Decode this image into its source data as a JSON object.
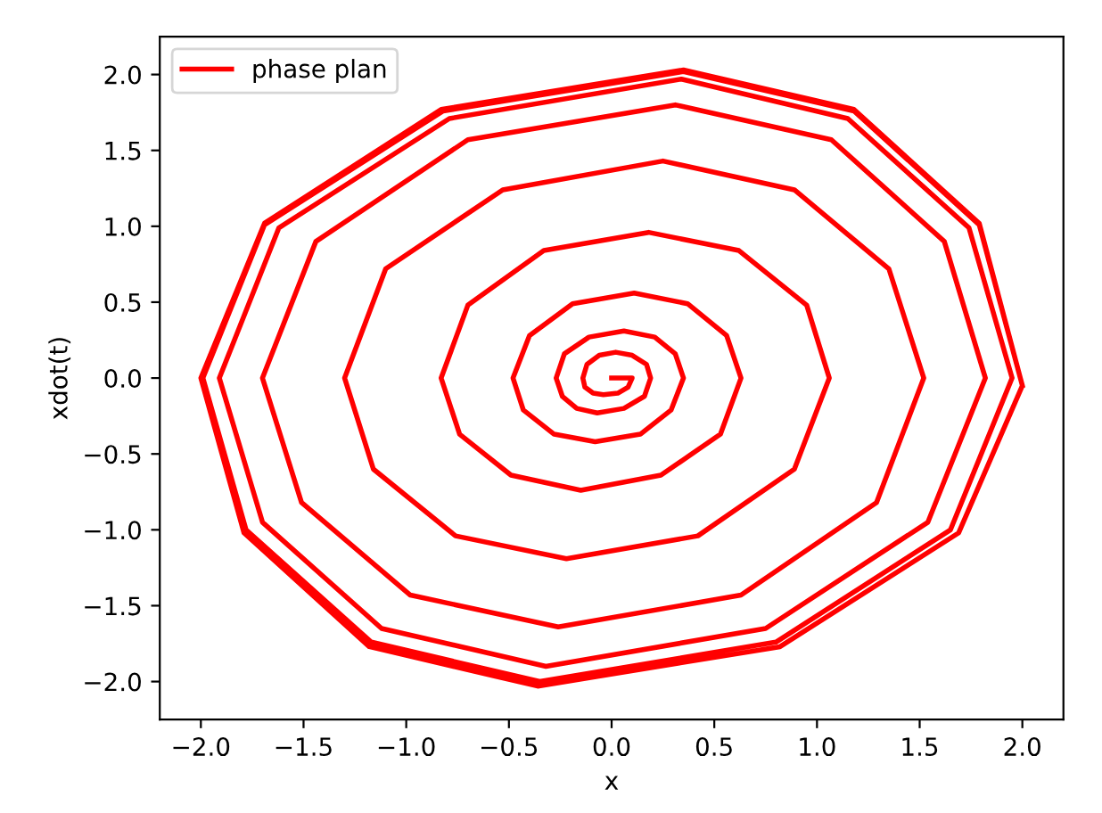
{
  "chart_data": {
    "type": "line",
    "xlabel": "x",
    "ylabel": "xdot(t)",
    "legend": "top left",
    "grid": false,
    "marker": "none",
    "line_style": "solid",
    "xlim": [
      -2.2,
      2.2
    ],
    "ylim": [
      -2.25,
      2.25
    ],
    "xticks": [
      {
        "value": -2.0,
        "label": "−2.0"
      },
      {
        "value": -1.5,
        "label": "−1.5"
      },
      {
        "value": -1.0,
        "label": "−1.0"
      },
      {
        "value": -0.5,
        "label": "−0.5"
      },
      {
        "value": 0.0,
        "label": "0.0"
      },
      {
        "value": 0.5,
        "label": "0.5"
      },
      {
        "value": 1.0,
        "label": "1.0"
      },
      {
        "value": 1.5,
        "label": "1.5"
      },
      {
        "value": 2.0,
        "label": "2.0"
      }
    ],
    "yticks": [
      {
        "value": -2.0,
        "label": "−2.0"
      },
      {
        "value": -1.5,
        "label": "−1.5"
      },
      {
        "value": -1.0,
        "label": "−1.0"
      },
      {
        "value": -0.5,
        "label": "−0.5"
      },
      {
        "value": 0.0,
        "label": "0.0"
      },
      {
        "value": 0.5,
        "label": "0.5"
      },
      {
        "value": 1.0,
        "label": "1.0"
      },
      {
        "value": 1.5,
        "label": "1.5"
      },
      {
        "value": 2.0,
        "label": "2.0"
      }
    ],
    "series": [
      {
        "name": "phase plan",
        "color": "#ff0000",
        "x": [
          0,
          0.1,
          0.08,
          0.03,
          -0.04,
          -0.09,
          -0.13,
          -0.14,
          -0.12,
          -0.06,
          0.02,
          0.1,
          0.17,
          0.19,
          0.16,
          0.06,
          -0.07,
          -0.17,
          -0.24,
          -0.27,
          -0.23,
          -0.11,
          0.06,
          0.21,
          0.31,
          0.35,
          0.29,
          0.14,
          -0.08,
          -0.28,
          -0.43,
          -0.48,
          -0.4,
          -0.19,
          0.11,
          0.37,
          0.56,
          0.63,
          0.53,
          0.24,
          -0.15,
          -0.49,
          -0.74,
          -0.83,
          -0.7,
          -0.33,
          0.18,
          0.62,
          0.95,
          1.06,
          0.89,
          0.42,
          -0.22,
          -0.76,
          -1.16,
          -1.3,
          -1.1,
          -0.53,
          0.25,
          0.89,
          1.35,
          1.52,
          1.29,
          0.63,
          -0.26,
          -0.98,
          -1.51,
          -1.7,
          -1.44,
          -0.7,
          0.31,
          1.07,
          1.62,
          1.82,
          1.54,
          0.75,
          -0.32,
          -1.12,
          -1.7,
          -1.91,
          -1.62,
          -0.79,
          0.34,
          1.15,
          1.74,
          1.95,
          1.65,
          0.8,
          -0.35,
          -1.17,
          -1.78,
          -1.99,
          -1.69,
          -0.82,
          0.35,
          1.18,
          1.79,
          2.0,
          1.69,
          0.82,
          -0.36,
          -1.18,
          -1.79,
          -2.0,
          -1.69,
          -0.83,
          0.35,
          1.18,
          1.79,
          2.0
        ],
        "values": [
          0,
          0,
          -0.06,
          -0.1,
          -0.11,
          -0.1,
          -0.06,
          0,
          0.09,
          0.15,
          0.17,
          0.15,
          0.09,
          0,
          -0.12,
          -0.2,
          -0.23,
          -0.2,
          -0.12,
          0,
          0.16,
          0.27,
          0.31,
          0.27,
          0.16,
          0,
          -0.21,
          -0.37,
          -0.42,
          -0.37,
          -0.21,
          0,
          0.28,
          0.49,
          0.56,
          0.49,
          0.28,
          0,
          -0.37,
          -0.64,
          -0.74,
          -0.64,
          -0.37,
          0,
          0.48,
          0.84,
          0.96,
          0.84,
          0.48,
          0,
          -0.6,
          -1.04,
          -1.19,
          -1.04,
          -0.6,
          0,
          0.72,
          1.24,
          1.43,
          1.24,
          0.72,
          0,
          -0.82,
          -1.43,
          -1.64,
          -1.43,
          -0.82,
          0,
          0.9,
          1.57,
          1.8,
          1.57,
          0.9,
          0,
          -0.95,
          -1.65,
          -1.9,
          -1.65,
          -0.95,
          0,
          0.99,
          1.71,
          1.97,
          1.71,
          0.99,
          0,
          -1.0,
          -1.74,
          -2.0,
          -1.74,
          -1.0,
          0,
          1.01,
          1.76,
          2.02,
          1.76,
          1.01,
          -0.05,
          -1.02,
          -1.77,
          -2.03,
          -1.77,
          -1.02,
          0,
          1.02,
          1.77,
          2.03,
          1.77,
          1.02,
          -0.05
        ]
      }
    ]
  }
}
